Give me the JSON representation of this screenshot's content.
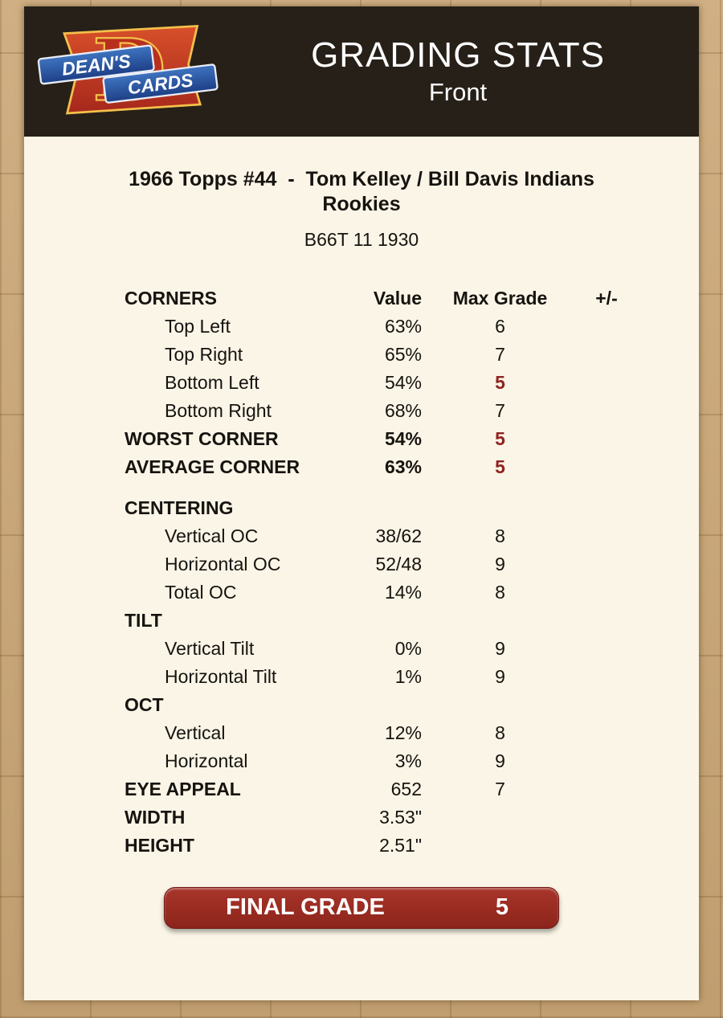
{
  "logo": {
    "line1": "DEAN'S",
    "line2": "CARDS",
    "letter": "D"
  },
  "header": {
    "title": "GRADING STATS",
    "subtitle": "Front"
  },
  "card": {
    "title": "1966 Topps #44  -  Tom Kelley / Bill Davis Indians Rookies",
    "code": "B66T 11 1930"
  },
  "table": {
    "headers": {
      "label": "CORNERS",
      "value": "Value",
      "max_grade": "Max Grade",
      "plus_minus": "+/-"
    },
    "rows": [
      {
        "label": "Top Left",
        "value": "63%",
        "grade": "6",
        "indent": true
      },
      {
        "label": "Top Right",
        "value": "65%",
        "grade": "7",
        "indent": true
      },
      {
        "label": "Bottom Left",
        "value": "54%",
        "grade": "5",
        "indent": true,
        "grade_red": true
      },
      {
        "label": "Bottom Right",
        "value": "68%",
        "grade": "7",
        "indent": true
      },
      {
        "label": "WORST CORNER",
        "value": "54%",
        "grade": "5",
        "label_bold": true,
        "value_bold": true,
        "grade_red": true
      },
      {
        "label": "AVERAGE CORNER",
        "value": "63%",
        "grade": "5",
        "label_bold": true,
        "value_bold": true,
        "grade_red": true
      },
      {
        "label": "CENTERING",
        "value": "",
        "grade": "",
        "label_bold": true,
        "gap": true
      },
      {
        "label": "Vertical OC",
        "value": "38/62",
        "grade": "8",
        "indent": true
      },
      {
        "label": "Horizontal OC",
        "value": "52/48",
        "grade": "9",
        "indent": true
      },
      {
        "label": "Total OC",
        "value": "14%",
        "grade": "8",
        "indent": true
      },
      {
        "label": "TILT",
        "value": "",
        "grade": "",
        "label_bold": true
      },
      {
        "label": "Vertical Tilt",
        "value": "0%",
        "grade": "9",
        "indent": true
      },
      {
        "label": "Horizontal Tilt",
        "value": "1%",
        "grade": "9",
        "indent": true
      },
      {
        "label": "OCT",
        "value": "",
        "grade": "",
        "label_bold": true
      },
      {
        "label": "Vertical",
        "value": "12%",
        "grade": "8",
        "indent": true
      },
      {
        "label": "Horizontal",
        "value": "3%",
        "grade": "9",
        "indent": true
      },
      {
        "label": "EYE APPEAL",
        "value": "652",
        "grade": "7",
        "label_bold": true
      },
      {
        "label": "WIDTH",
        "value": "3.53\"",
        "grade": "",
        "label_bold": true
      },
      {
        "label": "HEIGHT",
        "value": "2.51\"",
        "grade": "",
        "label_bold": true
      }
    ]
  },
  "final_grade": {
    "label": "FINAL GRADE",
    "value": "5"
  },
  "colors": {
    "accent_red": "#8e2420",
    "header_bg": "#262019",
    "panel_bg": "#faf5e6",
    "page_bg": "#c8a77c"
  }
}
